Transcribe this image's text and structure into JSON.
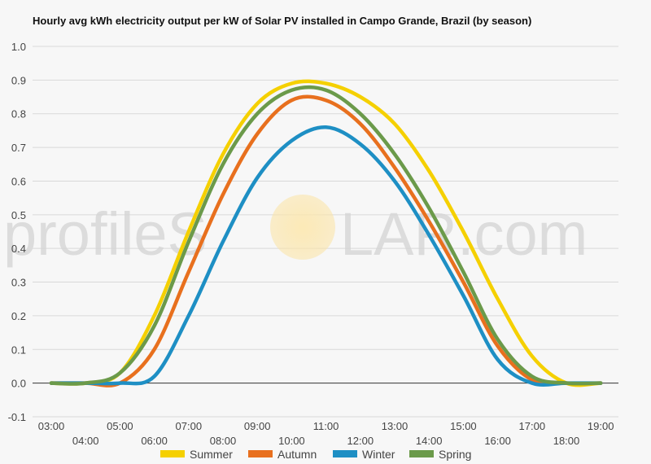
{
  "chart_data": {
    "type": "line",
    "title": "Hourly avg kWh electricity output per kW of Solar PV installed in Campo Grande, Brazil (by season)",
    "xlabel": "",
    "ylabel": "",
    "x": [
      "03:00",
      "04:00",
      "05:00",
      "06:00",
      "07:00",
      "08:00",
      "09:00",
      "10:00",
      "11:00",
      "12:00",
      "13:00",
      "14:00",
      "15:00",
      "16:00",
      "17:00",
      "18:00",
      "19:00"
    ],
    "ylim": [
      -0.1,
      1.0
    ],
    "yticks": [
      -0.1,
      0.0,
      0.1,
      0.2,
      0.3,
      0.4,
      0.5,
      0.6,
      0.7,
      0.8,
      0.9,
      1.0
    ],
    "ytick_labels": [
      "-0.1",
      "0.0",
      "0.1",
      "0.2",
      "0.3",
      "0.4",
      "0.5",
      "0.6",
      "0.7",
      "0.8",
      "0.9",
      "1.0"
    ],
    "grid": true,
    "legend_position": "bottom",
    "series": [
      {
        "name": "Summer",
        "color": "#f5d000",
        "values": [
          0.0,
          0.0,
          0.03,
          0.2,
          0.45,
          0.68,
          0.83,
          0.89,
          0.89,
          0.85,
          0.77,
          0.63,
          0.45,
          0.25,
          0.08,
          0.0,
          0.0
        ]
      },
      {
        "name": "Autumn",
        "color": "#e8701e",
        "values": [
          0.0,
          0.0,
          0.0,
          0.1,
          0.33,
          0.56,
          0.74,
          0.84,
          0.84,
          0.77,
          0.64,
          0.48,
          0.3,
          0.11,
          0.01,
          0.0,
          0.0
        ]
      },
      {
        "name": "Winter",
        "color": "#1e8fc4",
        "values": [
          0.0,
          0.0,
          0.0,
          0.02,
          0.2,
          0.42,
          0.61,
          0.72,
          0.76,
          0.71,
          0.6,
          0.44,
          0.26,
          0.07,
          0.0,
          0.0,
          0.0
        ]
      },
      {
        "name": "Spring",
        "color": "#6b9a4a",
        "values": [
          0.0,
          0.0,
          0.03,
          0.17,
          0.42,
          0.65,
          0.8,
          0.87,
          0.87,
          0.8,
          0.68,
          0.52,
          0.33,
          0.13,
          0.02,
          0.0,
          0.0
        ]
      }
    ]
  },
  "watermark": {
    "left": "profileS",
    "right": "LAR.com"
  }
}
